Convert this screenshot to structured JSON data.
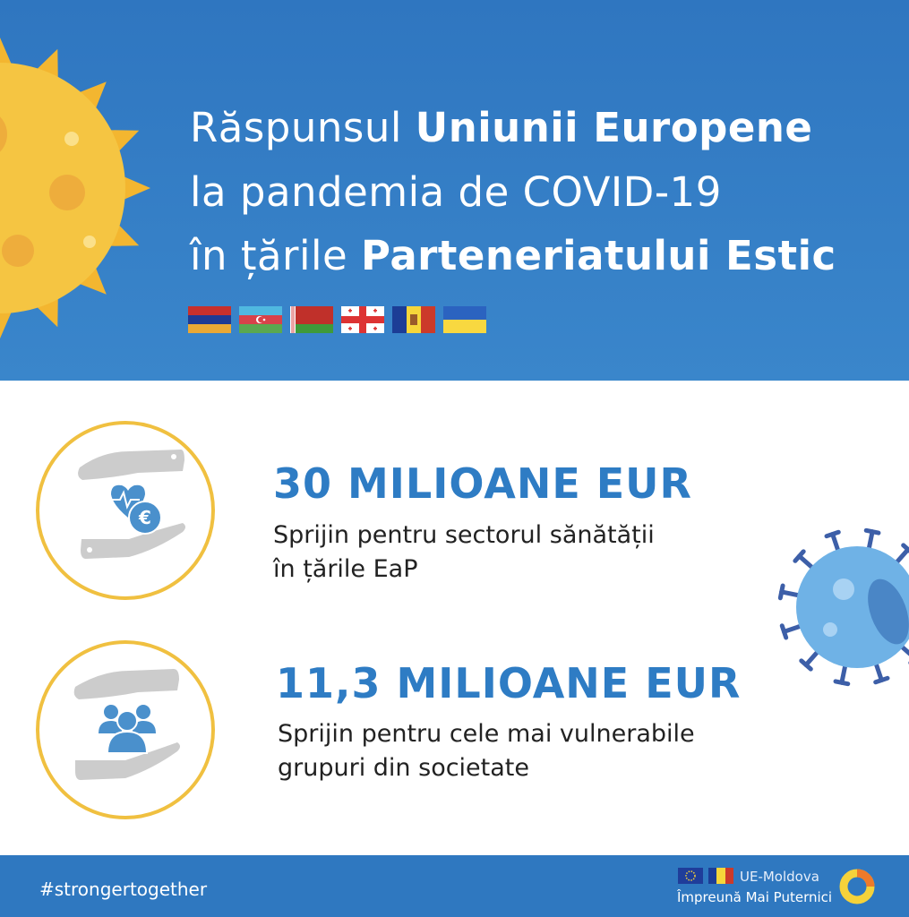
{
  "header": {
    "title_line1_regular": "Răspunsul ",
    "title_line1_bold": "Uniunii Europene",
    "title_line2": "la pandemia de COVID-19",
    "title_line3_regular": "în țările ",
    "title_line3_bold": "Parteneriatului Estic",
    "flags": [
      "armenia",
      "azerbaijan",
      "belarus",
      "georgia",
      "moldova",
      "ukraine"
    ]
  },
  "items": [
    {
      "amount": "30 MILIOANE EUR",
      "desc_line1": "Sprijin pentru sectorul sănătății",
      "desc_line2": "în țările EaP",
      "icon": "hands-heart-euro-icon"
    },
    {
      "amount": "11,3 MILIOANE EUR",
      "desc_line1": "Sprijin pentru cele mai vulnerabile",
      "desc_line2": "grupuri din societate",
      "icon": "hands-people-icon"
    }
  ],
  "footer": {
    "hashtag": "#strongertogether",
    "brand_line1": "UE-Moldova",
    "brand_line2": "Împreună Mai Puternici"
  },
  "colors": {
    "blue": "#2f78c0",
    "accent_blue": "#2e7cc4",
    "ring_yellow": "#f0c040",
    "sun_yellow": "#f3c240"
  }
}
